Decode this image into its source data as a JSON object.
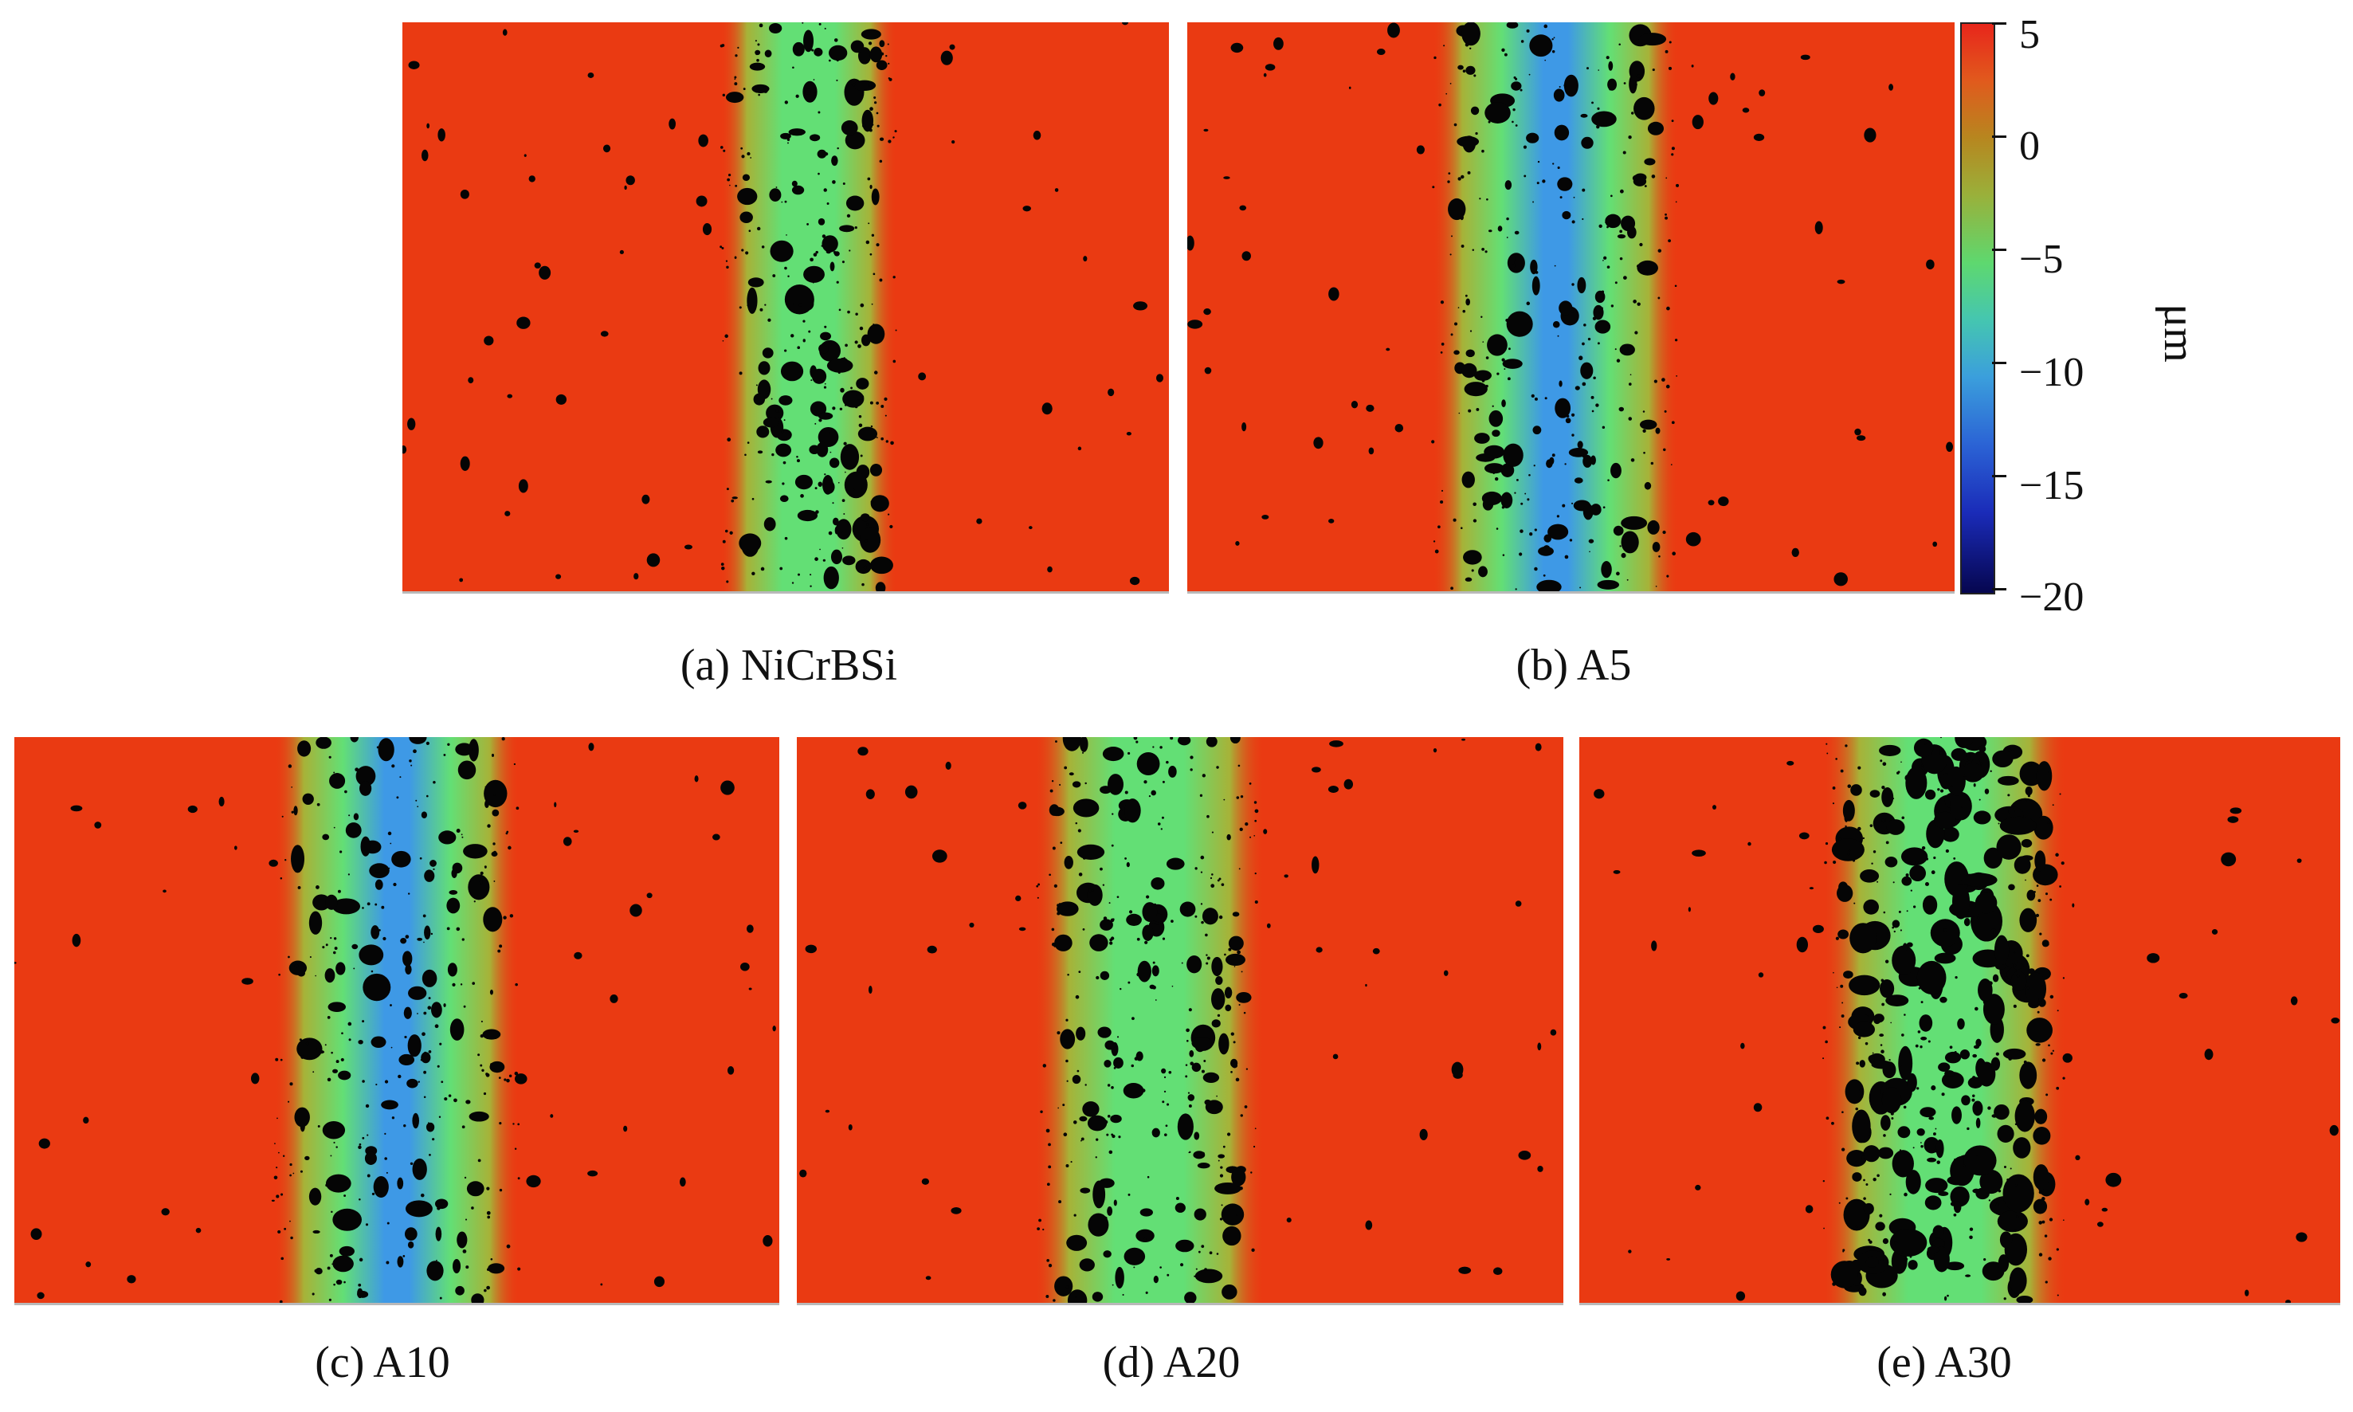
{
  "figure": {
    "panels": [
      {
        "caption": "(a) NiCrBSi",
        "band_center": 0.53,
        "band_width": 0.23,
        "deep": false
      },
      {
        "caption": "(b) A5",
        "band_center": 0.48,
        "band_width": 0.32,
        "deep": true
      },
      {
        "caption": "(c) A10",
        "band_center": 0.5,
        "band_width": 0.32,
        "deep": true
      },
      {
        "caption": "(d) A20",
        "band_center": 0.46,
        "band_width": 0.3,
        "deep": false
      },
      {
        "caption": "(e) A30",
        "band_center": 0.48,
        "band_width": 0.32,
        "deep": false
      }
    ],
    "colorbar": {
      "unit": "μm",
      "ticks": [
        "5",
        "0",
        "−5",
        "−10",
        "−15",
        "−20"
      ],
      "min": -20,
      "max": 5
    },
    "colors": {
      "background": "#ea3a12",
      "band_edge": "#a7b238",
      "band_mid": "#63df75",
      "band_deep": "#3e99e6",
      "pit": "#050505"
    }
  }
}
